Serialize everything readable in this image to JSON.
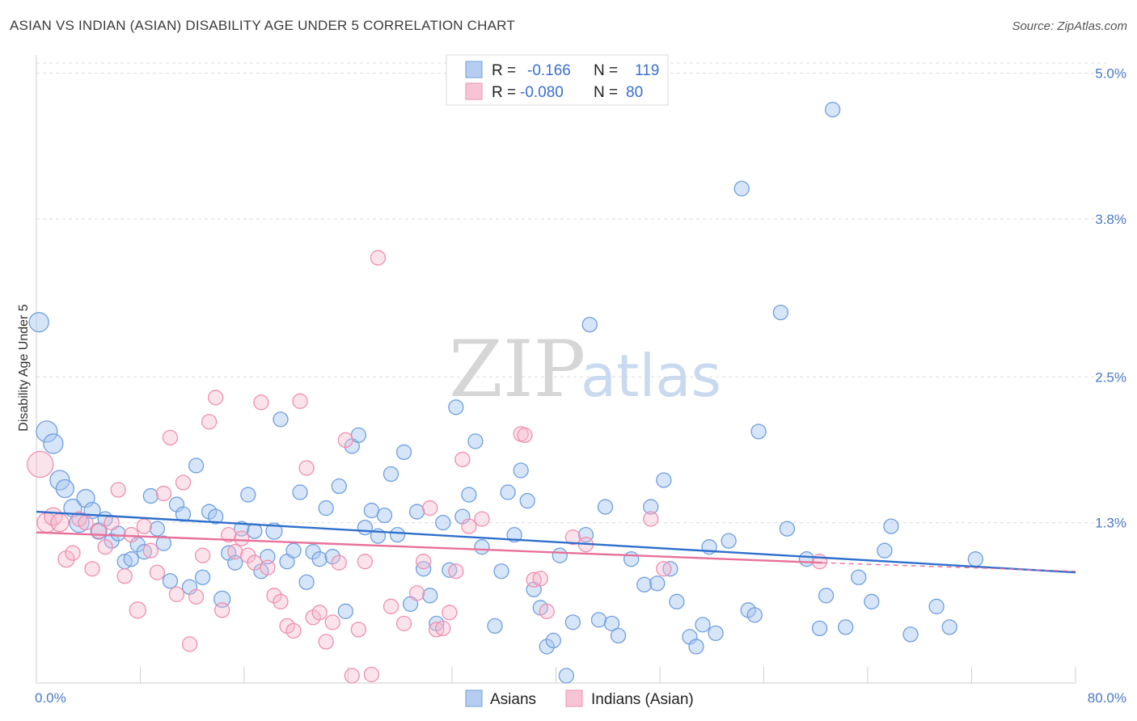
{
  "title": "ASIAN VS INDIAN (ASIAN) DISABILITY AGE UNDER 5 CORRELATION CHART",
  "source": "Source: ZipAtlas.com",
  "watermark": {
    "zip": "ZIP",
    "atlas": "atlas"
  },
  "colors": {
    "asians": "#6f9fe0",
    "indians": "#f08fb0",
    "asians_line": "#2f6fcc",
    "indians_line": "#e87099",
    "tick_label": "#4a78c8"
  },
  "legend": {
    "rows": [
      {
        "r_label": "R =",
        "r_value": "-0.166",
        "n_label": "N =",
        "n_value": "119"
      },
      {
        "r_label": "R =",
        "r_value": "-0.080",
        "n_label": "N =",
        "n_value": "80"
      }
    ]
  },
  "chart_data": {
    "type": "scatter",
    "ylabel": "Disability Age Under 5",
    "xlim": [
      0,
      80
    ],
    "ylim": [
      0,
      5.0
    ],
    "x_tick_labels": [
      "0.0%",
      "80.0%"
    ],
    "y_ticks": [
      1.3,
      2.5,
      3.8,
      5.0
    ],
    "y_tick_labels": [
      "1.3%",
      "2.5%",
      "3.8%",
      "5.0%"
    ],
    "grid": true,
    "legend_position": "top-center",
    "series": [
      {
        "name": "Asians",
        "trend": {
          "x": [
            0,
            80
          ],
          "y": [
            1.39,
            0.89
          ]
        },
        "points": [
          [
            0.2,
            2.95,
            12
          ],
          [
            0.8,
            2.05,
            13
          ],
          [
            1.3,
            1.95,
            12
          ],
          [
            1.8,
            1.65,
            12
          ],
          [
            2.2,
            1.58,
            11
          ],
          [
            2.8,
            1.42,
            11
          ],
          [
            3.3,
            1.3,
            12
          ],
          [
            3.8,
            1.5,
            11
          ],
          [
            4.3,
            1.4,
            10
          ],
          [
            4.8,
            1.23,
            10
          ],
          [
            5.3,
            1.33,
            9
          ],
          [
            5.8,
            1.15,
            9
          ],
          [
            6.3,
            1.21,
            9
          ],
          [
            6.8,
            0.98,
            9
          ],
          [
            7.3,
            1.0,
            9
          ],
          [
            7.8,
            1.12,
            9
          ],
          [
            8.3,
            1.06,
            9
          ],
          [
            8.8,
            1.52,
            9
          ],
          [
            9.3,
            1.25,
            9
          ],
          [
            9.8,
            1.13,
            9
          ],
          [
            10.3,
            0.82,
            9
          ],
          [
            10.8,
            1.45,
            9
          ],
          [
            11.3,
            1.37,
            9
          ],
          [
            11.8,
            0.77,
            9
          ],
          [
            12.3,
            1.77,
            9
          ],
          [
            12.8,
            0.85,
            9
          ],
          [
            13.3,
            1.39,
            9
          ],
          [
            13.8,
            1.35,
            9
          ],
          [
            14.3,
            0.67,
            10
          ],
          [
            14.8,
            1.05,
            9
          ],
          [
            15.3,
            0.97,
            9
          ],
          [
            15.8,
            1.25,
            9
          ],
          [
            16.3,
            1.53,
            9
          ],
          [
            16.8,
            1.23,
            9
          ],
          [
            17.3,
            0.9,
            9
          ],
          [
            17.8,
            1.02,
            9
          ],
          [
            18.3,
            1.23,
            10
          ],
          [
            18.8,
            2.15,
            9
          ],
          [
            19.3,
            0.98,
            9
          ],
          [
            19.8,
            1.07,
            9
          ],
          [
            20.3,
            1.55,
            9
          ],
          [
            20.8,
            0.81,
            9
          ],
          [
            21.3,
            1.06,
            9
          ],
          [
            21.8,
            1.0,
            9
          ],
          [
            22.3,
            1.42,
            9
          ],
          [
            22.8,
            1.02,
            9
          ],
          [
            23.3,
            1.6,
            9
          ],
          [
            23.8,
            0.57,
            9
          ],
          [
            24.3,
            1.93,
            9
          ],
          [
            24.8,
            2.02,
            9
          ],
          [
            25.3,
            1.26,
            9
          ],
          [
            25.8,
            1.4,
            9
          ],
          [
            26.3,
            1.19,
            9
          ],
          [
            26.8,
            1.36,
            9
          ],
          [
            27.3,
            1.7,
            9
          ],
          [
            27.8,
            1.2,
            9
          ],
          [
            28.3,
            1.88,
            9
          ],
          [
            28.8,
            0.63,
            9
          ],
          [
            29.3,
            1.39,
            9
          ],
          [
            29.8,
            0.92,
            9
          ],
          [
            30.3,
            0.7,
            9
          ],
          [
            30.8,
            0.47,
            9
          ],
          [
            31.3,
            1.3,
            9
          ],
          [
            31.8,
            0.91,
            9
          ],
          [
            32.3,
            2.25,
            9
          ],
          [
            32.8,
            1.35,
            9
          ],
          [
            33.3,
            1.53,
            9
          ],
          [
            33.8,
            1.97,
            9
          ],
          [
            34.3,
            1.1,
            9
          ],
          [
            35.3,
            0.45,
            9
          ],
          [
            35.8,
            0.9,
            9
          ],
          [
            36.3,
            1.55,
            9
          ],
          [
            36.8,
            1.2,
            9
          ],
          [
            37.3,
            1.73,
            9
          ],
          [
            37.8,
            1.48,
            9
          ],
          [
            38.3,
            0.75,
            9
          ],
          [
            38.8,
            0.6,
            9
          ],
          [
            39.3,
            0.28,
            9
          ],
          [
            39.8,
            0.33,
            9
          ],
          [
            40.3,
            1.03,
            9
          ],
          [
            40.8,
            0.04,
            9
          ],
          [
            41.3,
            0.48,
            9
          ],
          [
            42.3,
            1.2,
            9
          ],
          [
            42.6,
            2.93,
            9
          ],
          [
            43.3,
            0.5,
            9
          ],
          [
            43.8,
            1.43,
            9
          ],
          [
            44.3,
            0.47,
            9
          ],
          [
            44.8,
            0.37,
            9
          ],
          [
            45.8,
            1.0,
            9
          ],
          [
            46.8,
            0.79,
            9
          ],
          [
            47.3,
            1.43,
            9
          ],
          [
            47.8,
            0.8,
            9
          ],
          [
            48.3,
            1.65,
            9
          ],
          [
            48.8,
            0.92,
            9
          ],
          [
            49.3,
            0.65,
            9
          ],
          [
            50.3,
            0.36,
            9
          ],
          [
            50.8,
            0.28,
            9
          ],
          [
            51.3,
            0.46,
            9
          ],
          [
            51.8,
            1.1,
            9
          ],
          [
            52.3,
            0.39,
            9
          ],
          [
            53.3,
            1.15,
            9
          ],
          [
            54.3,
            4.05,
            9
          ],
          [
            54.8,
            0.58,
            9
          ],
          [
            55.3,
            0.54,
            9
          ],
          [
            55.6,
            2.05,
            9
          ],
          [
            57.3,
            3.03,
            9
          ],
          [
            57.8,
            1.25,
            9
          ],
          [
            59.3,
            1.0,
            9
          ],
          [
            60.3,
            0.43,
            9
          ],
          [
            60.8,
            0.7,
            9
          ],
          [
            61.3,
            4.7,
            9
          ],
          [
            62.3,
            0.44,
            9
          ],
          [
            63.3,
            0.85,
            9
          ],
          [
            64.3,
            0.65,
            9
          ],
          [
            65.3,
            1.07,
            9
          ],
          [
            65.8,
            1.27,
            9
          ],
          [
            67.3,
            0.38,
            9
          ],
          [
            69.3,
            0.61,
            9
          ],
          [
            70.3,
            0.44,
            9
          ],
          [
            72.3,
            1.0,
            9
          ]
        ]
      },
      {
        "name": "Indians (Asian)",
        "trend": {
          "x": [
            0,
            60.5
          ],
          "y": [
            1.22,
            0.97
          ]
        },
        "trend_extension": {
          "x": [
            60.5,
            80
          ],
          "y": [
            0.97,
            0.9
          ]
        },
        "points": [
          [
            0.3,
            1.78,
            16
          ],
          [
            0.8,
            1.3,
            12
          ],
          [
            1.3,
            1.35,
            11
          ],
          [
            1.8,
            1.3,
            11
          ],
          [
            2.3,
            1.0,
            10
          ],
          [
            2.8,
            1.05,
            9
          ],
          [
            3.3,
            1.33,
            9
          ],
          [
            3.8,
            1.3,
            9
          ],
          [
            4.3,
            0.92,
            9
          ],
          [
            4.8,
            1.23,
            9
          ],
          [
            5.3,
            1.1,
            9
          ],
          [
            5.8,
            1.3,
            9
          ],
          [
            6.3,
            1.57,
            9
          ],
          [
            6.8,
            0.86,
            9
          ],
          [
            7.3,
            1.2,
            9
          ],
          [
            7.8,
            0.58,
            10
          ],
          [
            8.3,
            1.27,
            9
          ],
          [
            8.8,
            1.07,
            9
          ],
          [
            9.3,
            0.89,
            9
          ],
          [
            9.8,
            1.54,
            9
          ],
          [
            10.3,
            2.0,
            9
          ],
          [
            10.8,
            0.71,
            9
          ],
          [
            11.3,
            1.63,
            9
          ],
          [
            11.8,
            0.3,
            9
          ],
          [
            12.3,
            0.69,
            9
          ],
          [
            12.8,
            1.03,
            9
          ],
          [
            13.3,
            2.13,
            9
          ],
          [
            13.8,
            2.33,
            9
          ],
          [
            14.3,
            0.58,
            9
          ],
          [
            14.8,
            1.2,
            9
          ],
          [
            15.3,
            1.06,
            9
          ],
          [
            15.8,
            1.17,
            9
          ],
          [
            16.3,
            1.03,
            9
          ],
          [
            16.8,
            0.97,
            9
          ],
          [
            17.3,
            2.29,
            9
          ],
          [
            17.8,
            0.93,
            9
          ],
          [
            18.3,
            0.7,
            9
          ],
          [
            18.8,
            0.65,
            9
          ],
          [
            19.3,
            0.45,
            9
          ],
          [
            19.8,
            0.41,
            9
          ],
          [
            20.3,
            2.3,
            9
          ],
          [
            20.8,
            1.75,
            9
          ],
          [
            21.3,
            0.52,
            9
          ],
          [
            21.8,
            0.56,
            9
          ],
          [
            22.3,
            0.32,
            9
          ],
          [
            22.8,
            0.48,
            9
          ],
          [
            23.3,
            0.97,
            9
          ],
          [
            23.8,
            1.98,
            9
          ],
          [
            24.3,
            0.04,
            9
          ],
          [
            24.8,
            0.42,
            9
          ],
          [
            25.3,
            0.98,
            9
          ],
          [
            25.8,
            0.05,
            9
          ],
          [
            26.3,
            3.48,
            9
          ],
          [
            27.3,
            0.61,
            9
          ],
          [
            28.3,
            0.47,
            9
          ],
          [
            29.3,
            0.72,
            9
          ],
          [
            29.8,
            0.98,
            9
          ],
          [
            30.3,
            1.42,
            9
          ],
          [
            30.8,
            0.42,
            9
          ],
          [
            31.3,
            0.43,
            9
          ],
          [
            31.8,
            0.56,
            9
          ],
          [
            32.3,
            0.9,
            9
          ],
          [
            32.8,
            1.82,
            9
          ],
          [
            33.3,
            1.27,
            9
          ],
          [
            34.3,
            1.33,
            9
          ],
          [
            37.3,
            2.03,
            9
          ],
          [
            37.6,
            2.02,
            9
          ],
          [
            38.3,
            0.83,
            9
          ],
          [
            38.8,
            0.84,
            9
          ],
          [
            39.3,
            0.57,
            9
          ],
          [
            41.3,
            1.18,
            9
          ],
          [
            42.3,
            1.12,
            9
          ],
          [
            47.3,
            1.33,
            9
          ],
          [
            48.3,
            0.92,
            9
          ],
          [
            60.3,
            0.98,
            9
          ]
        ]
      }
    ]
  },
  "bottom_legend": {
    "asians": "Asians",
    "indians": "Indians (Asian)"
  }
}
